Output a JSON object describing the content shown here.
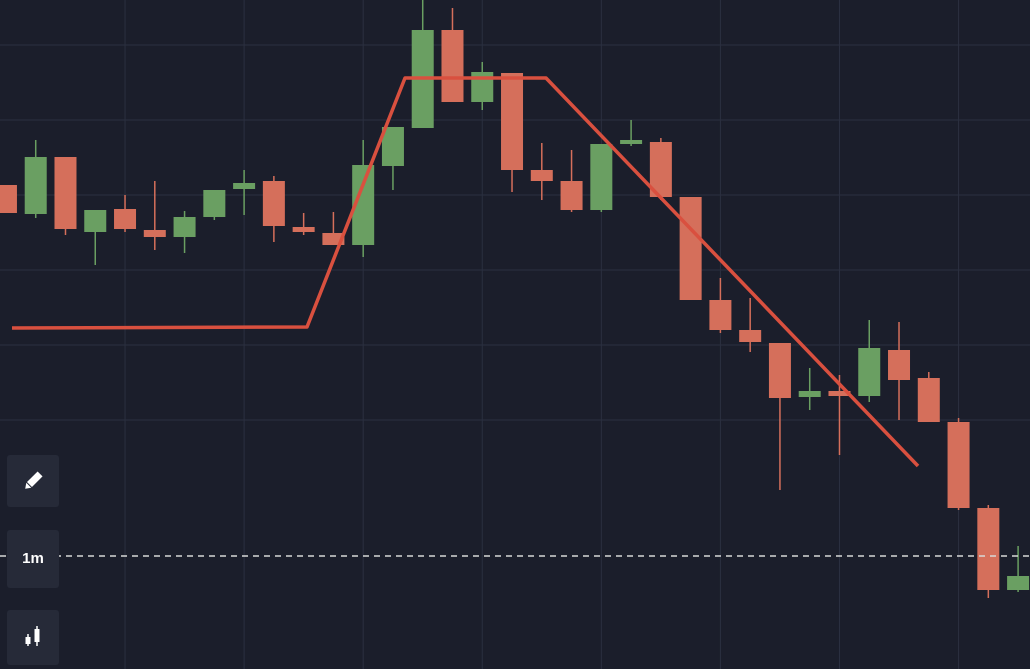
{
  "chart_data": {
    "type": "candlestick",
    "x": [
      0,
      1,
      2,
      3,
      4,
      5,
      6,
      7,
      8,
      9,
      10,
      11,
      12,
      13,
      14,
      15,
      16,
      17,
      18,
      19,
      20,
      21,
      22,
      23,
      24,
      25,
      26,
      27,
      28,
      29,
      30,
      31,
      32,
      33,
      34
    ],
    "open": [
      484,
      455,
      512,
      437,
      460,
      439,
      432,
      452,
      480,
      488,
      442,
      436,
      424,
      503,
      541,
      639,
      567,
      596,
      499,
      488,
      459,
      525,
      527,
      472,
      369,
      339,
      326,
      272,
      278,
      273,
      319,
      291,
      247,
      161,
      79
    ],
    "high": [
      484,
      529,
      512,
      459,
      474,
      488,
      458,
      479,
      499,
      493,
      456,
      457,
      529,
      542,
      669,
      661,
      607,
      596,
      526,
      519,
      525,
      549,
      531,
      472,
      391,
      371,
      326,
      301,
      294,
      349,
      347,
      297,
      251,
      164,
      123
    ],
    "low": [
      456,
      451,
      434,
      404,
      437,
      419,
      416,
      449,
      454,
      427,
      434,
      424,
      412,
      479,
      541,
      567,
      559,
      477,
      469,
      457,
      457,
      523,
      469,
      369,
      336,
      317,
      179,
      259,
      214,
      267,
      249,
      247,
      159,
      71,
      77
    ],
    "close": [
      456,
      512,
      440,
      459,
      440,
      432,
      452,
      479,
      486,
      443,
      437,
      424,
      504,
      542,
      639,
      567,
      597,
      499,
      488,
      459,
      525,
      529,
      472,
      369,
      339,
      327,
      271,
      278,
      273,
      321,
      289,
      247,
      161,
      79,
      93
    ],
    "up_color": "#6a9f62",
    "down_color": "#d56f5b",
    "xlim": [
      -0.2,
      34.4
    ],
    "xticks": [
      4,
      8,
      12,
      16,
      20,
      24,
      28,
      32
    ],
    "ylim": [
      0,
      669
    ],
    "yticks": [
      249,
      324,
      399,
      474,
      549,
      624
    ],
    "grid": true,
    "price_line": 113
  },
  "toolbar": {
    "interval": "1m"
  }
}
